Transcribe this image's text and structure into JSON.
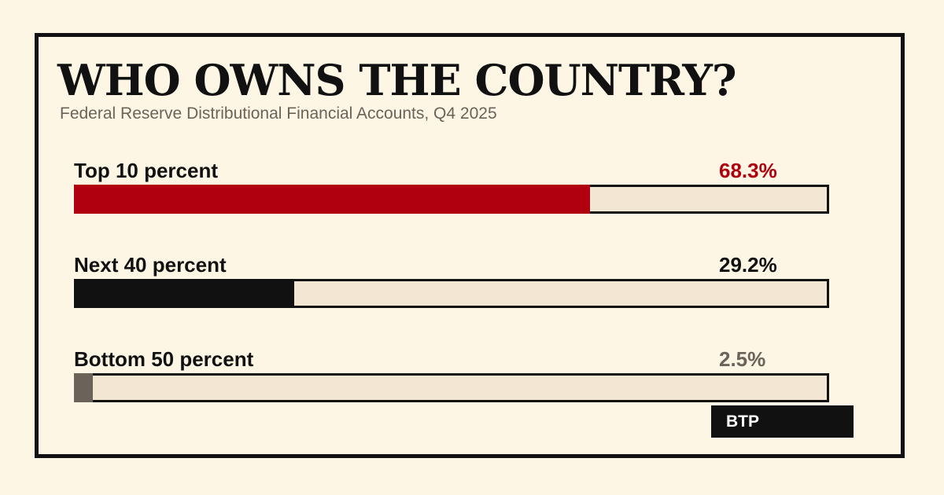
{
  "title": "WHO OWNS THE COUNTRY?",
  "subtitle": "Federal Reserve Distributional Financial Accounts, Q4 2025",
  "badge": "BTP",
  "chart_data": {
    "type": "bar",
    "orientation": "horizontal",
    "title": "WHO OWNS THE COUNTRY?",
    "subtitle": "Federal Reserve Distributional Financial Accounts, Q4 2025",
    "unit": "%",
    "xlim": [
      0,
      100
    ],
    "categories": [
      "Top 10 percent",
      "Next 40 percent",
      "Bottom 50 percent"
    ],
    "values": [
      68.3,
      29.2,
      2.5
    ],
    "value_labels": [
      "68.3%",
      "29.2%",
      "2.5%"
    ],
    "colors": [
      "#b0000f",
      "#111111",
      "#6b625a"
    ],
    "track_color": "#f3e6d2"
  }
}
